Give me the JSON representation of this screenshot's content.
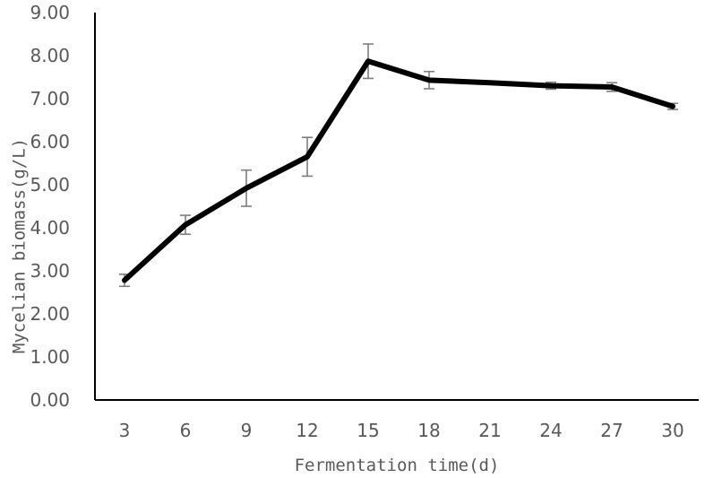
{
  "chart_data": {
    "type": "line",
    "title": "",
    "xlabel": "Fermentation time(d)",
    "ylabel": "Mycelian biomass(g/L)",
    "categories": [
      "3",
      "6",
      "9",
      "12",
      "15",
      "18",
      "21",
      "24",
      "27",
      "30"
    ],
    "y_tick_labels": [
      "0.00",
      "1.00",
      "2.00",
      "3.00",
      "4.00",
      "5.00",
      "6.00",
      "7.00",
      "8.00",
      "9.00"
    ],
    "ylim": [
      0,
      9
    ],
    "grid": false,
    "legend": "none",
    "series": [
      {
        "values": [
          2.78,
          4.07,
          4.92,
          5.65,
          7.87,
          7.43,
          7.37,
          7.3,
          7.27,
          6.82
        ],
        "error": [
          0.14,
          0.22,
          0.42,
          0.45,
          0.4,
          0.2,
          null,
          0.08,
          0.1,
          0.07
        ],
        "color": "#000000"
      }
    ],
    "error_bar_color": "#7f7f7f"
  }
}
